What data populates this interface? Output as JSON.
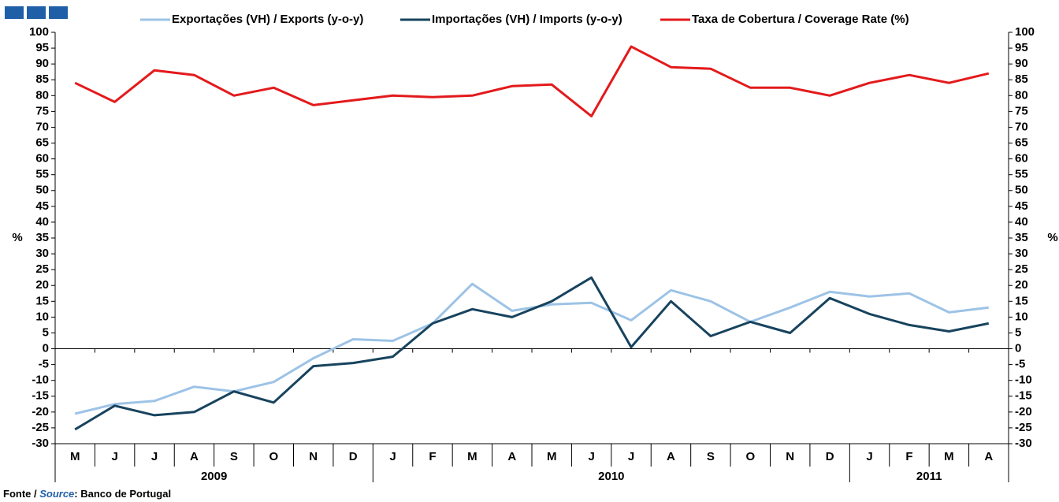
{
  "chart_data": {
    "type": "line",
    "categories": [
      "M",
      "J",
      "J",
      "A",
      "S",
      "O",
      "N",
      "D",
      "J",
      "F",
      "M",
      "A",
      "M",
      "J",
      "J",
      "A",
      "S",
      "O",
      "N",
      "D",
      "J",
      "F",
      "M",
      "A"
    ],
    "groups": [
      {
        "label": "2009",
        "count": 8
      },
      {
        "label": "2010",
        "count": 12
      },
      {
        "label": "2011",
        "count": 4
      }
    ],
    "series": [
      {
        "name": "Exportações (VH) / Exports (y-o-y)",
        "color": "#9dc3e6",
        "values": [
          -20.5,
          -17.5,
          -16.5,
          -12,
          -13.5,
          -10.5,
          -3,
          3,
          2.5,
          8,
          20.5,
          12,
          14,
          14.5,
          9,
          18.5,
          15,
          8.5,
          13,
          18,
          16.5,
          17.5,
          11.5,
          13
        ]
      },
      {
        "name": "Importações (VH) / Imports (y-o-y)",
        "color": "#17435e",
        "values": [
          -25.5,
          -18,
          -21,
          -20,
          -13.5,
          -17,
          -5.5,
          -4.5,
          -2.5,
          8,
          12.5,
          10,
          15,
          22.5,
          0.5,
          15,
          4,
          8.5,
          5,
          16,
          11,
          7.5,
          5.5,
          8
        ]
      },
      {
        "name": "Taxa de Cobertura / Coverage Rate (%)",
        "color": "#e31a1c",
        "values": [
          84,
          78,
          88,
          86.5,
          80,
          82.5,
          77,
          78.5,
          80,
          79.5,
          80,
          83,
          83.5,
          73.5,
          95.5,
          89,
          88.5,
          82.5,
          82.5,
          80,
          84,
          86.5,
          84,
          87
        ]
      }
    ],
    "ylabel": "%",
    "y2label": "%",
    "ylim": [
      -30,
      100
    ],
    "yticks": [
      -30,
      -25,
      -20,
      -15,
      -10,
      -5,
      0,
      5,
      10,
      15,
      20,
      25,
      30,
      35,
      40,
      45,
      50,
      55,
      60,
      65,
      70,
      75,
      80,
      85,
      90,
      95,
      100
    ],
    "y2lim": [
      -30,
      100
    ],
    "y2ticks": [
      -30,
      -25,
      -20,
      -15,
      -10,
      -5,
      0,
      5,
      10,
      15,
      20,
      25,
      30,
      35,
      40,
      45,
      50,
      55,
      60,
      65,
      70,
      75,
      80,
      85,
      90,
      95,
      100
    ],
    "legend": "top",
    "source_prefix": "Fonte / ",
    "source_word": "Source",
    "source_text": ": Banco de Portugal"
  }
}
